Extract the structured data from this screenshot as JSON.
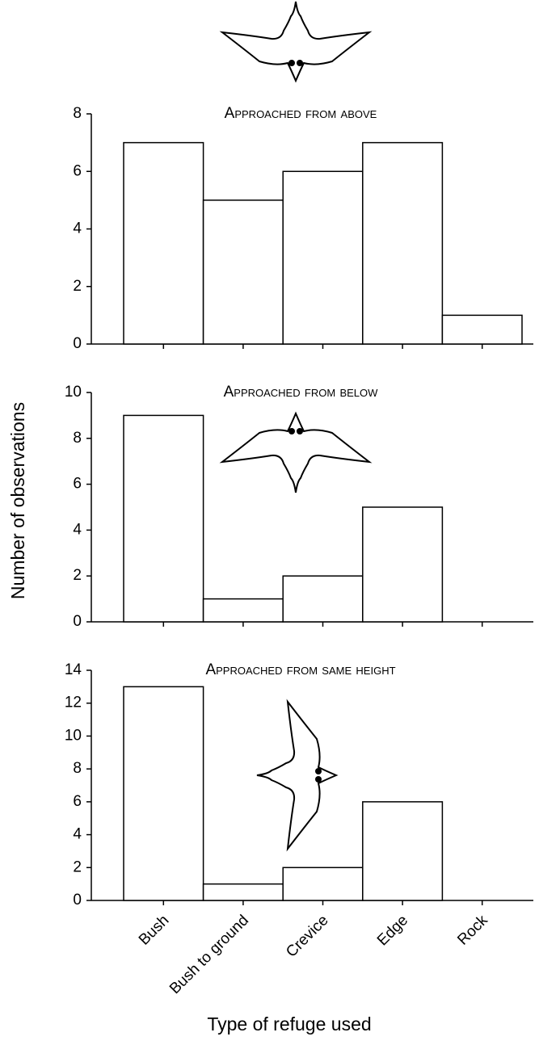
{
  "x_label": "Type of refuge used",
  "y_label": "Number of observations",
  "categories": [
    "Bush",
    "Bush to ground",
    "Crevice",
    "Edge",
    "Rock"
  ],
  "chart_data": [
    {
      "type": "bar",
      "title": "Approached from above",
      "values": [
        7,
        5,
        6,
        7,
        1
      ],
      "ylim": [
        0,
        8
      ],
      "yticks": [
        0,
        2,
        4,
        6,
        8
      ],
      "color": "#ffffff"
    },
    {
      "type": "bar",
      "title": "Approached from below",
      "values": [
        9,
        1,
        2,
        5,
        0
      ],
      "ylim": [
        0,
        10
      ],
      "yticks": [
        0,
        2,
        4,
        6,
        8,
        10
      ],
      "color": "#ffffff"
    },
    {
      "type": "bar",
      "title": "Approached from same height",
      "values": [
        13,
        1,
        2,
        6,
        0
      ],
      "ylim": [
        0,
        14
      ],
      "yticks": [
        0,
        2,
        4,
        6,
        8,
        10,
        12,
        14
      ],
      "color": "#ffffff"
    }
  ]
}
